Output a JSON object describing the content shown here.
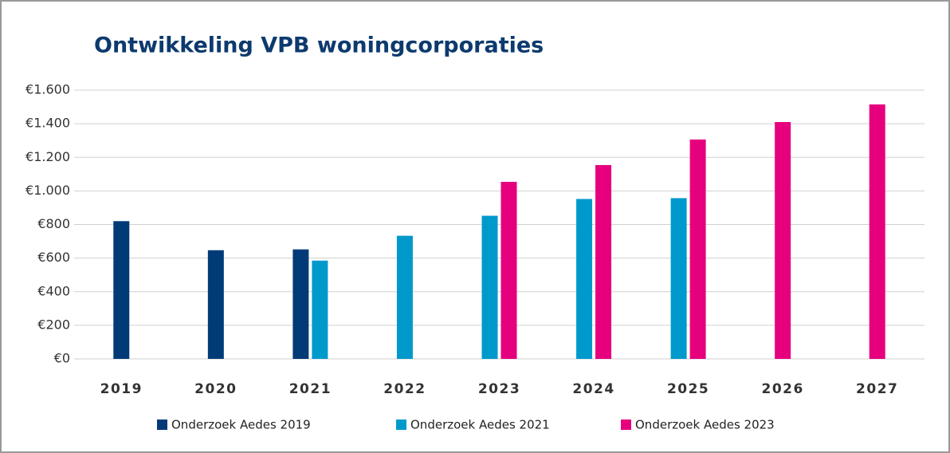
{
  "chart_data": {
    "type": "bar",
    "title": "Ontwikkeling VPB woningcorporaties",
    "categories": [
      "2019",
      "2020",
      "2021",
      "2022",
      "2023",
      "2024",
      "2025",
      "2026",
      "2027"
    ],
    "series": [
      {
        "name": "Onderzoek Aedes 2019",
        "color": "#003b78",
        "values": [
          820,
          647,
          652,
          null,
          null,
          null,
          null,
          null,
          null
        ]
      },
      {
        "name": "Onderzoek Aedes 2021",
        "color": "#0099cc",
        "values": [
          null,
          null,
          585,
          733,
          852,
          952,
          957,
          null,
          null
        ]
      },
      {
        "name": "Onderzoek Aedes 2023",
        "color": "#e6007e",
        "values": [
          null,
          null,
          null,
          null,
          1054,
          1154,
          1306,
          1410,
          1515
        ]
      }
    ],
    "ylim": [
      0,
      1600
    ],
    "yticks": [
      {
        "value": 0,
        "label": "€0"
      },
      {
        "value": 200,
        "label": "€200"
      },
      {
        "value": 400,
        "label": "€400"
      },
      {
        "value": 600,
        "label": "€600"
      },
      {
        "value": 800,
        "label": "€800"
      },
      {
        "value": 1000,
        "label": "€1.000"
      },
      {
        "value": 1200,
        "label": "€1.200"
      },
      {
        "value": 1400,
        "label": "€1.400"
      },
      {
        "value": 1600,
        "label": "€1.600"
      }
    ],
    "grid": true
  }
}
